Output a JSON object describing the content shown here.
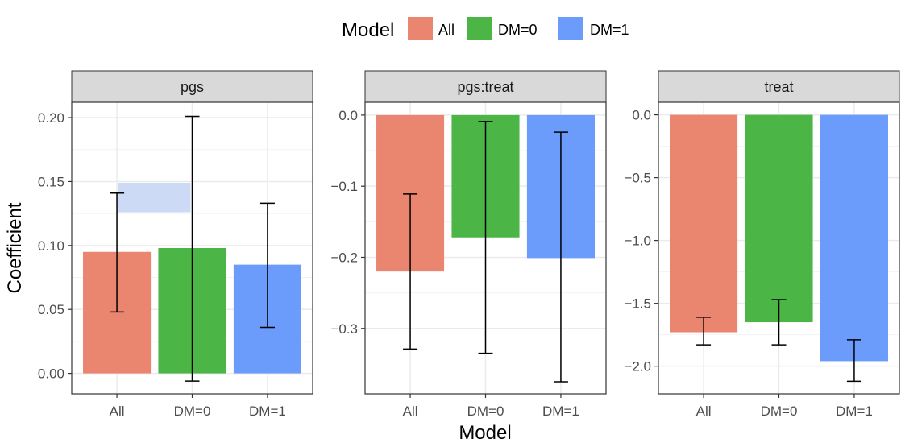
{
  "chart_data": {
    "type": "bar",
    "xlabel": "Model",
    "ylabel": "Coefficient",
    "legend": {
      "title": "Model",
      "placement": "top",
      "entries": [
        {
          "label": "All",
          "color": "#EA8670"
        },
        {
          "label": "DM=0",
          "color": "#4BB646"
        },
        {
          "label": "DM=1",
          "color": "#6B9CFB"
        }
      ]
    },
    "categories": [
      "All",
      "DM=0",
      "DM=1"
    ],
    "panels": [
      {
        "title": "pgs",
        "ylim": [
          -0.016,
          0.212
        ],
        "yticks": [
          0.0,
          0.05,
          0.1,
          0.15,
          0.2
        ],
        "ytick_labels": [
          "0.00",
          "0.05",
          "0.10",
          "0.15",
          "0.20"
        ],
        "values": [
          0.095,
          0.098,
          0.085
        ],
        "errors": [
          [
            0.048,
            0.141
          ],
          [
            -0.006,
            0.201
          ],
          [
            0.036,
            0.133
          ]
        ],
        "highlight_band": {
          "x_from": "All",
          "x_to": "DM=0",
          "y_from": 0.126,
          "y_to": 0.149,
          "color": "#CCDAF5"
        }
      },
      {
        "title": "pgs:treat",
        "ylim": [
          -0.392,
          0.018
        ],
        "yticks": [
          0.0,
          -0.1,
          -0.2,
          -0.3
        ],
        "ytick_labels": [
          "0.0",
          "−0.1",
          "−0.2",
          "−0.3"
        ],
        "values": [
          -0.22,
          -0.172,
          -0.201
        ],
        "errors": [
          [
            -0.329,
            -0.111
          ],
          [
            -0.335,
            -0.009
          ],
          [
            -0.375,
            -0.024
          ]
        ]
      },
      {
        "title": "treat",
        "ylim": [
          -2.22,
          0.1
        ],
        "yticks": [
          0.0,
          -0.5,
          -1.0,
          -1.5,
          -2.0
        ],
        "ytick_labels": [
          "0.0",
          "−0.5",
          "−1.0",
          "−1.5",
          "−2.0"
        ],
        "values": [
          -1.73,
          -1.65,
          -1.96
        ],
        "errors": [
          [
            -1.83,
            -1.61
          ],
          [
            -1.83,
            -1.47
          ],
          [
            -2.12,
            -1.79
          ]
        ]
      }
    ]
  }
}
